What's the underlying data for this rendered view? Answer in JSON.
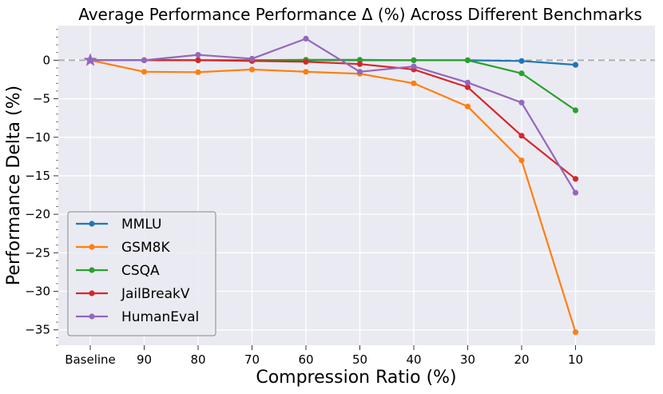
{
  "chart_data": {
    "type": "line",
    "title": "Average Performance Performance Δ (%) Across Different Benchmarks",
    "xlabel": "Compression Ratio (%)",
    "ylabel": "Performance Delta (%)",
    "categories": [
      "Baseline",
      "90",
      "80",
      "70",
      "60",
      "50",
      "40",
      "30",
      "20",
      "10"
    ],
    "ylim": [
      -37,
      4.5
    ],
    "yticks": [
      0,
      -5,
      -10,
      -15,
      -20,
      -25,
      -30,
      -35
    ],
    "grid": true,
    "legend_position": "lower-left",
    "baseline_reference": 0,
    "baseline_marker": "star",
    "series": [
      {
        "name": "MMLU",
        "color": "#1f77b4",
        "values": [
          0,
          0.0,
          0.0,
          0.0,
          0.0,
          0.0,
          0.0,
          0.0,
          -0.1,
          -0.6
        ]
      },
      {
        "name": "GSM8K",
        "color": "#ff7f0e",
        "values": [
          0,
          -1.5,
          -1.55,
          -1.2,
          -1.5,
          -1.75,
          -3.0,
          -6.0,
          -13.0,
          -35.3
        ]
      },
      {
        "name": "CSQA",
        "color": "#2ca02c",
        "values": [
          0,
          0.0,
          0.0,
          0.0,
          0.05,
          0.05,
          0.0,
          0.0,
          -1.7,
          -6.5
        ]
      },
      {
        "name": "JailBreakV",
        "color": "#d62728",
        "values": [
          0,
          0.0,
          0.0,
          -0.1,
          -0.2,
          -0.5,
          -1.2,
          -3.5,
          -9.8,
          -15.4
        ]
      },
      {
        "name": "HumanEval",
        "color": "#9467bd",
        "values": [
          0,
          0.0,
          0.7,
          0.2,
          2.8,
          -1.5,
          -0.8,
          -2.9,
          -5.5,
          -17.2
        ]
      }
    ]
  }
}
